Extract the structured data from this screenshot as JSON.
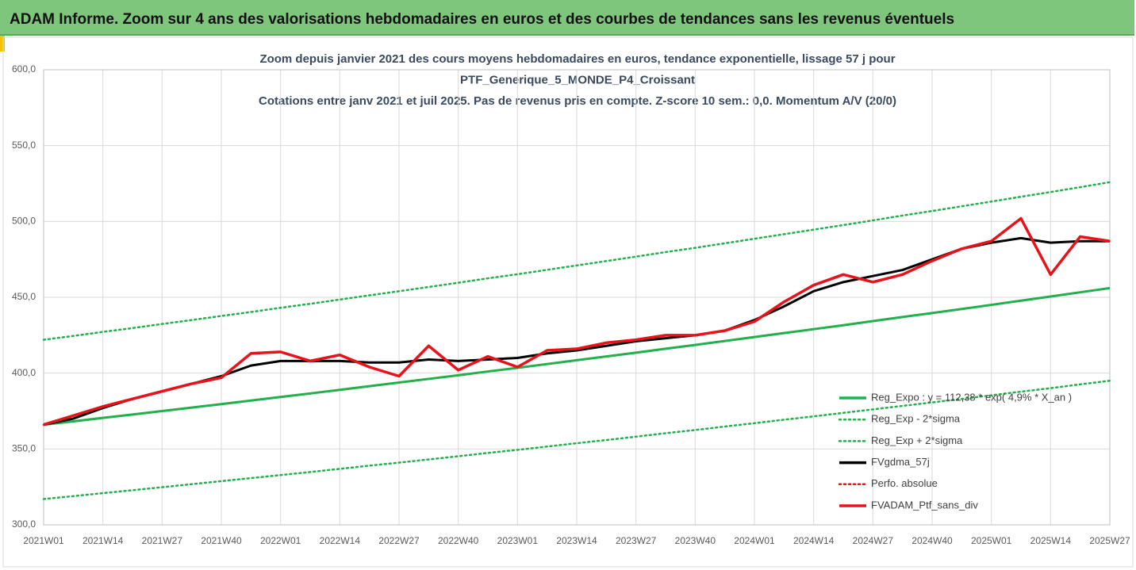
{
  "header": {
    "title": "ADAM Informe. Zoom sur 4 ans des valorisations hebdomadaires en euros et des courbes de tendances sans les revenus éventuels"
  },
  "chart_data": {
    "type": "line",
    "title": [
      "Zoom depuis janvier 2021 des cours moyens hebdomadaires  en euros, tendance exponentielle, lissage 57 j pour",
      "PTF_Generique_5_MONDE_P4_Croissant",
      "Cotations entre janv 2021 et juil 2025. Pas de revenus pris en compte. Z-score 10 sem.: 0,0. Momentum A/V (20/0)"
    ],
    "categories": [
      "2021W01",
      null,
      "2021W14",
      null,
      "2021W27",
      null,
      "2021W40",
      null,
      "2022W01",
      null,
      "2022W14",
      null,
      "2022W27",
      null,
      "2022W40",
      null,
      "2023W01",
      null,
      "2023W14",
      null,
      "2023W27",
      null,
      "2023W40",
      null,
      "2024W01",
      null,
      "2024W14",
      null,
      "2024W27",
      null,
      "2024W40",
      null,
      "2025W01",
      null,
      "2025W14",
      null,
      "2025W27"
    ],
    "ylim": [
      300,
      600
    ],
    "yticks": [
      {
        "value": 300,
        "label": "300,0"
      },
      {
        "value": 350,
        "label": "350,0"
      },
      {
        "value": 400,
        "label": "400,0"
      },
      {
        "value": 450,
        "label": "450,0"
      },
      {
        "value": 500,
        "label": "500,0"
      },
      {
        "value": 550,
        "label": "550,0"
      },
      {
        "value": 600,
        "label": "600,0"
      }
    ],
    "grid": true,
    "legend": "bottom-right",
    "series": [
      {
        "name": "Reg_Expo : y = 112,38 * exp( 4,9% *  X_an )",
        "color": "#21b04b",
        "style": "solid",
        "values": [
          366,
          368.2,
          370.5,
          372.7,
          375.0,
          377.3,
          379.6,
          381.9,
          384.3,
          386.6,
          389.0,
          391.4,
          393.8,
          396.2,
          398.6,
          401.1,
          403.5,
          406.0,
          408.5,
          411.0,
          413.5,
          416.1,
          418.6,
          421.2,
          423.8,
          426.4,
          429.0,
          431.6,
          434.3,
          437.0,
          439.6,
          442.3,
          445.0,
          447.8,
          450.5,
          453.3,
          456.1
        ]
      },
      {
        "name": "Reg_Exp - 2*sigma",
        "color": "#21b04b",
        "style": "dotted",
        "values": [
          317,
          318.9,
          320.9,
          322.8,
          324.8,
          326.8,
          328.8,
          330.8,
          332.8,
          334.8,
          336.9,
          339.0,
          341.0,
          343.1,
          345.2,
          347.4,
          349.4,
          351.6,
          353.8,
          355.9,
          358.1,
          360.4,
          362.5,
          364.8,
          367.0,
          369.3,
          371.5,
          373.8,
          376.1,
          378.4,
          380.7,
          383.0,
          385.4,
          387.8,
          390.1,
          392.6,
          395.0
        ]
      },
      {
        "name": "Reg_Exp + 2*sigma",
        "color": "#21b04b",
        "style": "dotted",
        "values": [
          422,
          424.5,
          427.2,
          429.7,
          432.4,
          435.0,
          437.7,
          440.3,
          443.1,
          445.7,
          448.5,
          451.3,
          454.0,
          456.8,
          459.6,
          462.5,
          465.2,
          468.1,
          471.0,
          473.9,
          476.8,
          479.8,
          482.6,
          485.6,
          488.6,
          491.6,
          494.6,
          497.6,
          500.7,
          503.9,
          506.9,
          510.0,
          513.1,
          516.3,
          519.4,
          522.6,
          525.9
        ]
      },
      {
        "name": "FVgdma_57j",
        "color": "#000000",
        "style": "solid",
        "values": [
          366,
          370,
          377,
          383,
          388,
          393,
          398,
          405,
          408,
          408,
          408,
          407,
          407,
          409,
          408,
          409,
          410,
          413,
          415,
          418,
          421,
          423,
          425,
          428,
          435,
          444,
          454,
          460,
          464,
          468,
          475,
          482,
          486,
          489,
          486,
          487,
          487
        ]
      },
      {
        "name": "Perfo. absolue",
        "color": "#e8121b",
        "style": "dotted",
        "values": [
          366,
          372,
          378,
          383,
          388,
          393,
          397,
          413,
          414,
          408,
          412,
          404,
          398,
          418,
          402,
          411,
          404,
          415,
          416,
          420,
          422,
          425,
          425,
          428,
          434,
          447,
          458,
          465,
          460,
          465,
          474,
          482,
          487,
          502,
          465,
          490,
          487
        ]
      },
      {
        "name": "FVADAM_Ptf_sans_div",
        "color": "#e8121b",
        "style": "solid",
        "values": [
          366,
          372,
          378,
          383,
          388,
          393,
          397,
          413,
          414,
          408,
          412,
          404,
          398,
          418,
          402,
          411,
          404,
          415,
          416,
          420,
          422,
          425,
          425,
          428,
          434,
          447,
          458,
          465,
          460,
          465,
          474,
          482,
          487,
          502,
          465,
          490,
          487
        ]
      }
    ]
  }
}
